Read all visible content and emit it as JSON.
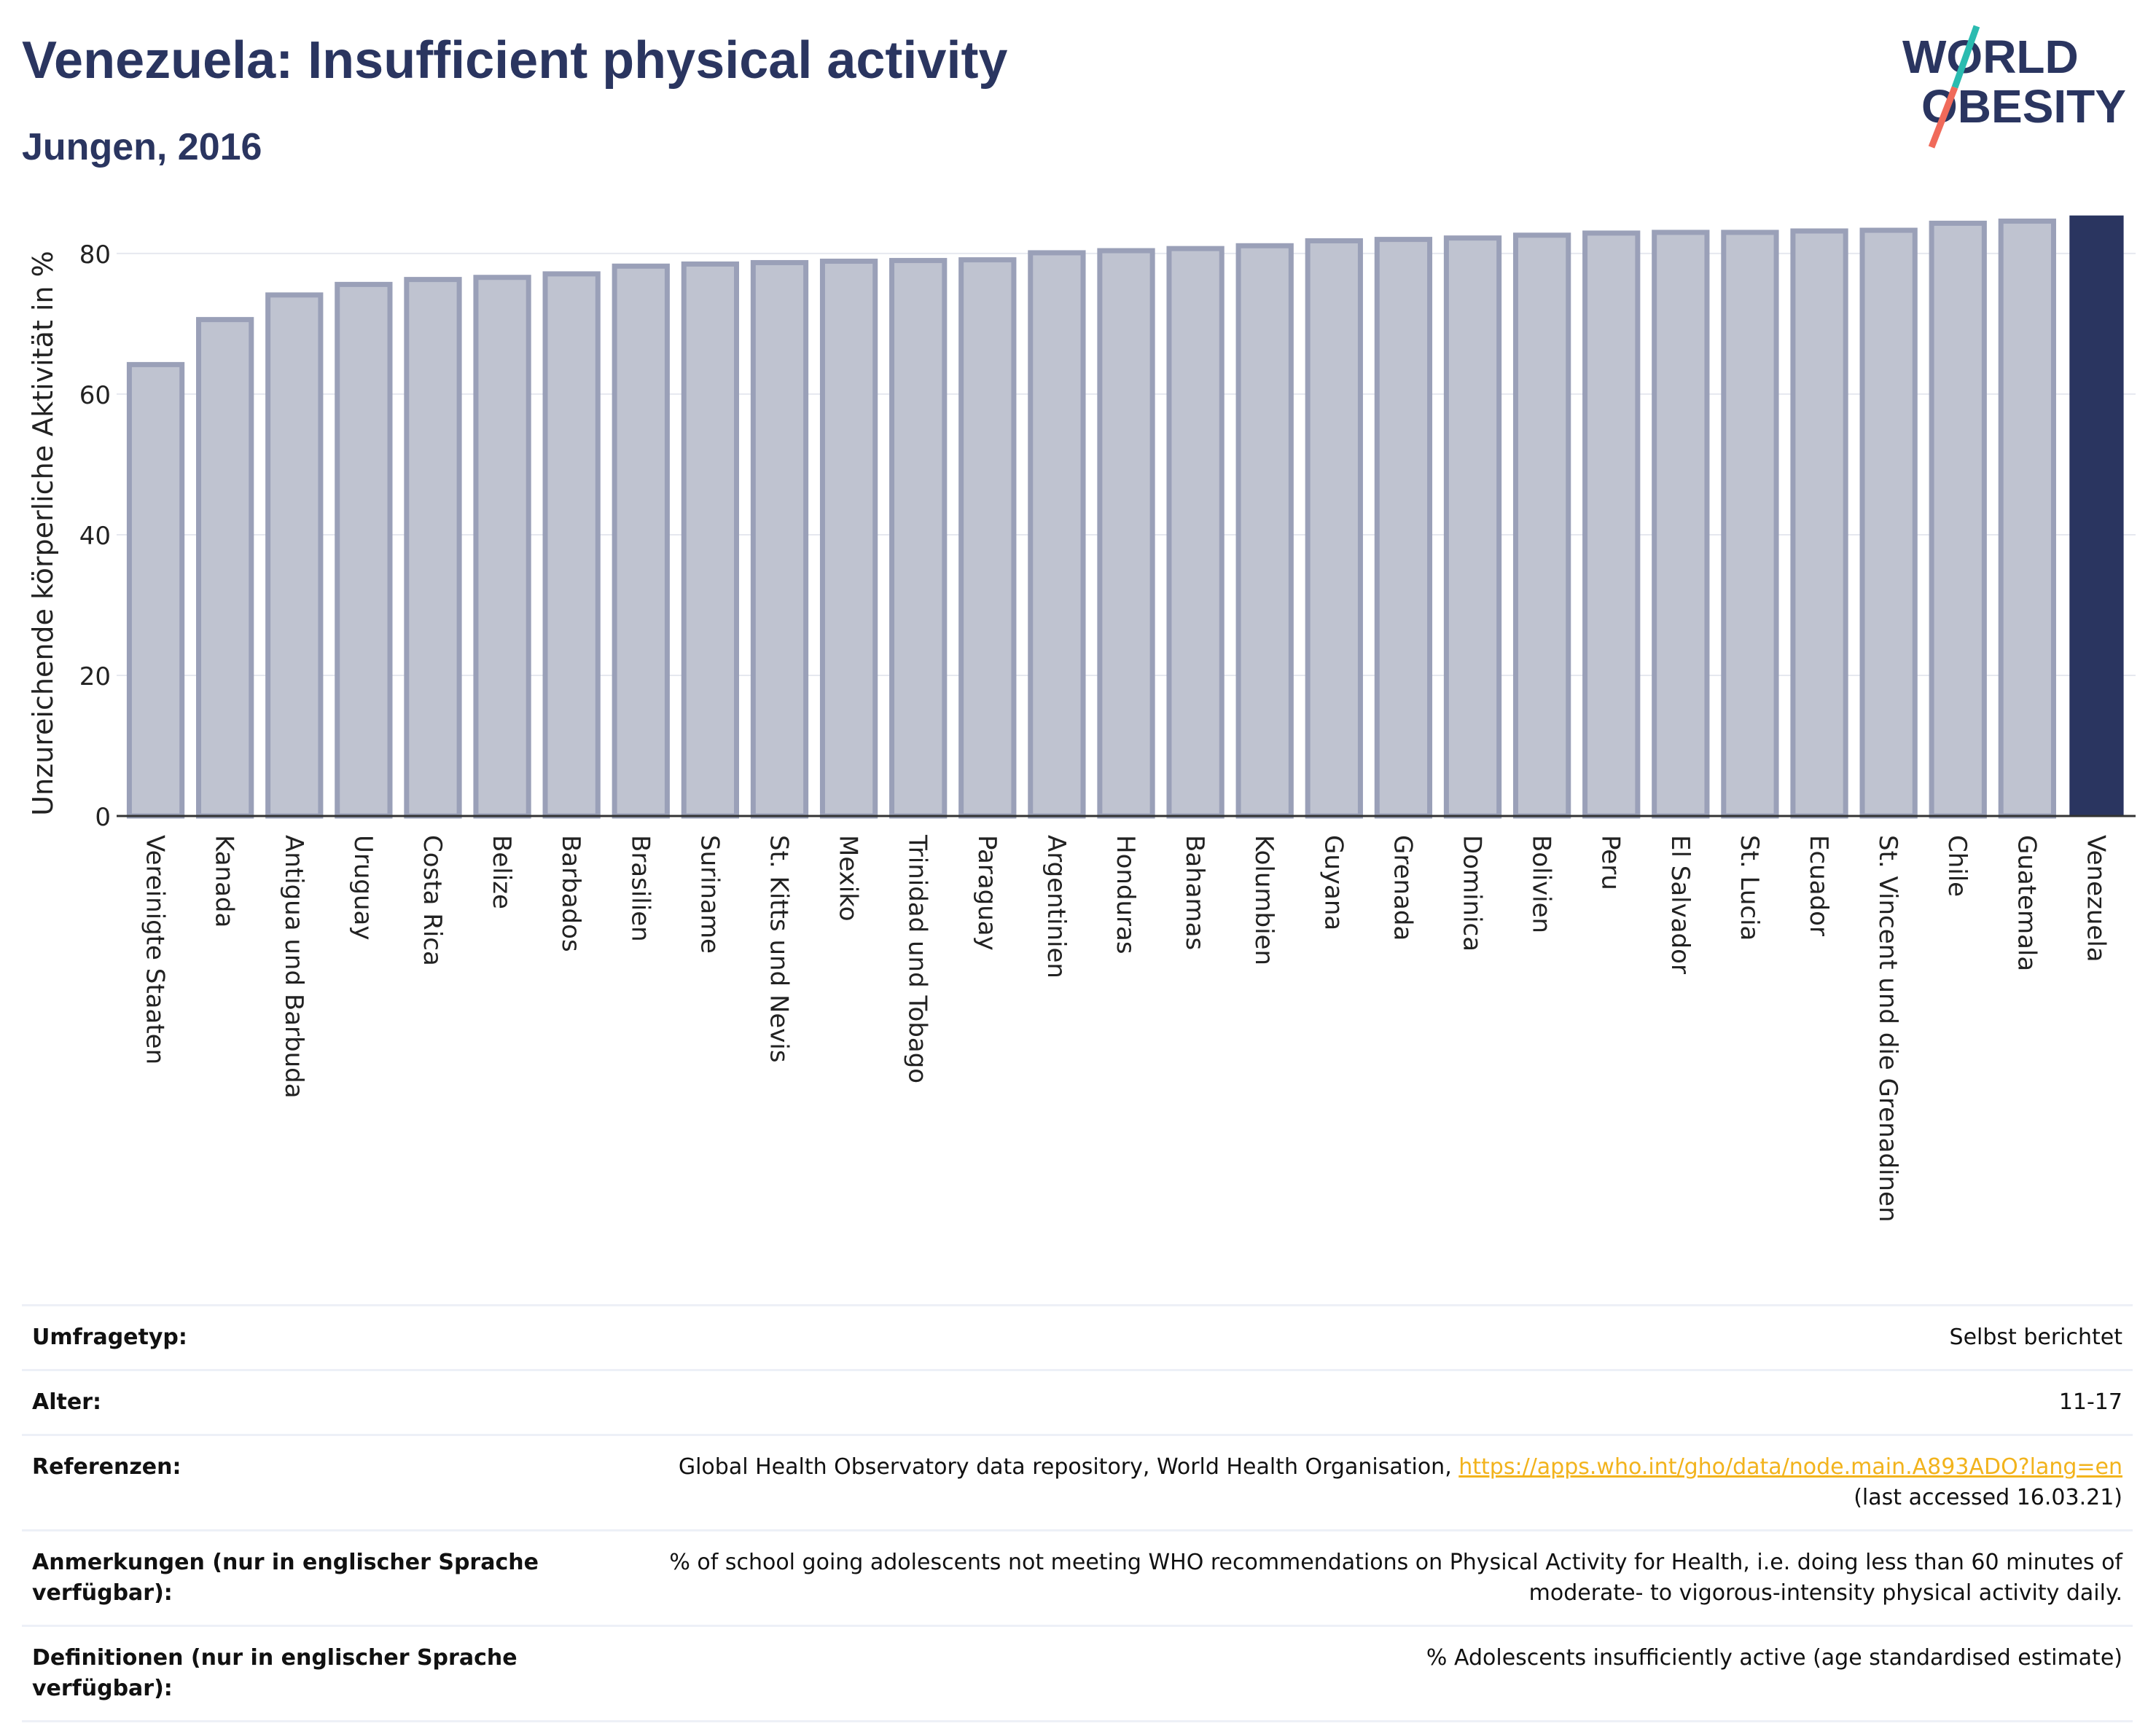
{
  "header": {
    "title": "Venezuela: Insufficient physical activity",
    "subtitle": "Jungen, 2016",
    "logo_line1": "WORLD",
    "logo_line2": "OBESITY"
  },
  "chart_data": {
    "type": "bar",
    "ylabel": "Unzureichende körperliche Aktivität in %",
    "ylim": [
      0,
      86
    ],
    "yticks": [
      0,
      20,
      40,
      60,
      80
    ],
    "grid": true,
    "categories": [
      "Vereinigte Staaten",
      "Kanada",
      "Antigua und Barbuda",
      "Uruguay",
      "Costa Rica",
      "Belize",
      "Barbados",
      "Brasilien",
      "Suriname",
      "St. Kitts und Nevis",
      "Mexiko",
      "Trinidad und Tobago",
      "Paraguay",
      "Argentinien",
      "Honduras",
      "Bahamas",
      "Kolumbien",
      "Guyana",
      "Grenada",
      "Dominica",
      "Bolivien",
      "Peru",
      "El Salvador",
      "St. Lucia",
      "Ecuador",
      "St. Vincent und die Grenadinen",
      "Chile",
      "Guatemala",
      "Venezuela"
    ],
    "values": [
      64.2,
      70.6,
      74.1,
      75.6,
      76.3,
      76.6,
      77.1,
      78.2,
      78.5,
      78.7,
      78.9,
      79.0,
      79.1,
      80.1,
      80.4,
      80.7,
      81.1,
      81.8,
      82.0,
      82.2,
      82.6,
      82.9,
      83.0,
      83.0,
      83.2,
      83.3,
      84.3,
      84.6,
      85.3
    ],
    "highlight": "Venezuela",
    "colors": {
      "bar": "#bfc3d0",
      "bar_edge": "#9aa0b8",
      "highlight": "#2a3560",
      "grid": "#e6e8ef"
    }
  },
  "info": {
    "rows": [
      {
        "label": "Umfragetyp:",
        "value": "Selbst berichtet"
      },
      {
        "label": "Alter:",
        "value": "11-17"
      },
      {
        "label": "Referenzen:",
        "value_prefix": "Global Health Observatory data repository, World Health Organisation, ",
        "link": "https://apps.who.int/gho/data/node.main.A893ADO?lang=en",
        "value_suffix": "(last accessed 16.03.21)"
      },
      {
        "label": "Anmerkungen (nur in englischer Sprache verfügbar):",
        "value": "% of school going adolescents not meeting WHO recommendations on Physical Activity for Health, i.e. doing less than 60 minutes of moderate- to vigorous-intensity physical activity daily."
      },
      {
        "label": "Definitionen (nur in englischer Sprache verfügbar):",
        "value": "% Adolescents insufficiently active (age standardised estimate)"
      }
    ]
  }
}
